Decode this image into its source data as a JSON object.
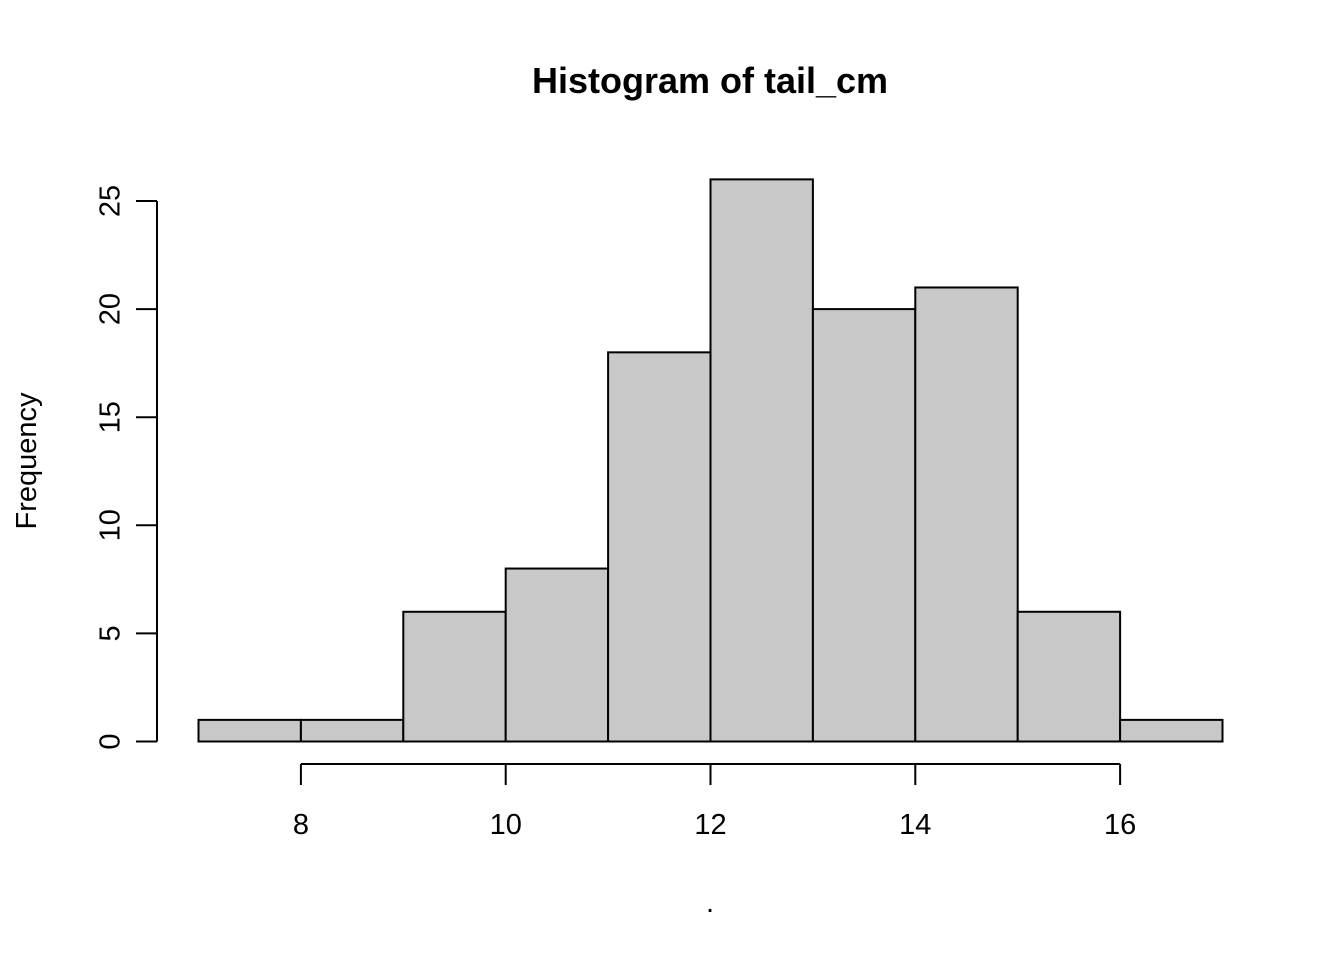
{
  "chart_data": {
    "type": "bar",
    "subtype": "histogram",
    "title": "Histogram of tail_cm",
    "xlabel": ".",
    "ylabel": "Frequency",
    "bins": [
      {
        "start": 7,
        "end": 8,
        "count": 1
      },
      {
        "start": 8,
        "end": 9,
        "count": 1
      },
      {
        "start": 9,
        "end": 10,
        "count": 6
      },
      {
        "start": 10,
        "end": 11,
        "count": 8
      },
      {
        "start": 11,
        "end": 12,
        "count": 18
      },
      {
        "start": 12,
        "end": 13,
        "count": 26
      },
      {
        "start": 13,
        "end": 14,
        "count": 20
      },
      {
        "start": 14,
        "end": 15,
        "count": 21
      },
      {
        "start": 15,
        "end": 16,
        "count": 6
      },
      {
        "start": 16,
        "end": 17,
        "count": 1
      }
    ],
    "x_ticks": [
      8,
      10,
      12,
      14,
      16
    ],
    "y_ticks": [
      0,
      5,
      10,
      15,
      20,
      25
    ],
    "xlim": [
      7,
      17
    ],
    "ylim": [
      0,
      26
    ],
    "grid": false,
    "bar_fill": "#c8c8c8",
    "bar_stroke": "#000000"
  }
}
